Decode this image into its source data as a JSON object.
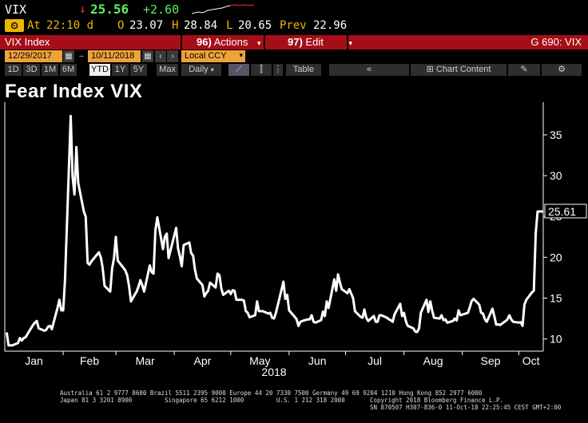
{
  "quote": {
    "ticker": "VIX",
    "arrow": "↓",
    "last": "25.56",
    "change": "+2.60",
    "badge": "🕕",
    "at_label": "At",
    "at_time": "22:10 d",
    "open_label": "O",
    "open": "23.07",
    "high_label": "H",
    "high": "28.84",
    "low_label": "L",
    "low": "20.65",
    "prev_label": "Prev",
    "prev": "22.96"
  },
  "titlebar": {
    "title": "VIX Index",
    "actions_num": "96)",
    "actions_label": "Actions",
    "edit_num": "97)",
    "edit_label": "Edit",
    "right": "G 690: VIX"
  },
  "controls": {
    "start_date": "12/29/2017",
    "end_date": "10/11/2018",
    "currency": "Local CCY"
  },
  "toolbar": {
    "periods": [
      "1D",
      "3D",
      "1M",
      "6M",
      "YTD",
      "1Y",
      "5Y",
      "Max"
    ],
    "active_period": "YTD",
    "frequency": "Daily",
    "table_label": "Table",
    "chart_content_label": "Chart Content"
  },
  "chart_title": "Fear Index VIX",
  "chart_data": {
    "type": "line",
    "title": "Fear Index VIX",
    "xlabel": "2018",
    "ylabel": "",
    "ylim": [
      8.5,
      39
    ],
    "yticks": [
      10,
      15,
      20,
      25,
      30,
      35
    ],
    "x_tick_labels": [
      "Jan",
      "Feb",
      "Mar",
      "Apr",
      "May",
      "Jun",
      "Jul",
      "Aug",
      "Sep",
      "Oct"
    ],
    "last_value_label": "25.61",
    "grid": false,
    "line_color": "#ffffff",
    "series": [
      {
        "values": [
          {
            "x": "2018-01-02",
            "y": 10.8
          },
          {
            "x": "2018-01-03",
            "y": 9.2
          },
          {
            "x": "2018-01-04",
            "y": 9.2
          },
          {
            "x": "2018-01-05",
            "y": 9.2
          },
          {
            "x": "2018-01-08",
            "y": 9.5
          },
          {
            "x": "2018-01-09",
            "y": 10.1
          },
          {
            "x": "2018-01-10",
            "y": 9.8
          },
          {
            "x": "2018-01-11",
            "y": 10.1
          },
          {
            "x": "2018-01-12",
            "y": 10.2
          },
          {
            "x": "2018-01-16",
            "y": 11.7
          },
          {
            "x": "2018-01-17",
            "y": 12.0
          },
          {
            "x": "2018-01-18",
            "y": 12.2
          },
          {
            "x": "2018-01-19",
            "y": 11.3
          },
          {
            "x": "2018-01-22",
            "y": 11.0
          },
          {
            "x": "2018-01-23",
            "y": 11.1
          },
          {
            "x": "2018-01-24",
            "y": 11.5
          },
          {
            "x": "2018-01-25",
            "y": 11.6
          },
          {
            "x": "2018-01-26",
            "y": 11.2
          },
          {
            "x": "2018-01-29",
            "y": 13.8
          },
          {
            "x": "2018-01-30",
            "y": 14.8
          },
          {
            "x": "2018-01-31",
            "y": 13.5
          },
          {
            "x": "2018-02-01",
            "y": 13.5
          },
          {
            "x": "2018-02-02",
            "y": 17.3
          },
          {
            "x": "2018-02-05",
            "y": 37.3
          },
          {
            "x": "2018-02-06",
            "y": 29.9
          },
          {
            "x": "2018-02-07",
            "y": 27.7
          },
          {
            "x": "2018-02-08",
            "y": 33.5
          },
          {
            "x": "2018-02-09",
            "y": 29.1
          },
          {
            "x": "2018-02-12",
            "y": 25.6
          },
          {
            "x": "2018-02-13",
            "y": 24.97
          },
          {
            "x": "2018-02-14",
            "y": 19.3
          },
          {
            "x": "2018-02-15",
            "y": 19.1
          },
          {
            "x": "2018-02-16",
            "y": 19.5
          },
          {
            "x": "2018-02-20",
            "y": 20.6
          },
          {
            "x": "2018-02-21",
            "y": 20.0
          },
          {
            "x": "2018-02-22",
            "y": 18.7
          },
          {
            "x": "2018-02-23",
            "y": 16.5
          },
          {
            "x": "2018-02-26",
            "y": 15.8
          },
          {
            "x": "2018-02-27",
            "y": 18.6
          },
          {
            "x": "2018-02-28",
            "y": 19.9
          },
          {
            "x": "2018-03-01",
            "y": 22.5
          },
          {
            "x": "2018-03-02",
            "y": 19.6
          },
          {
            "x": "2018-03-05",
            "y": 18.7
          },
          {
            "x": "2018-03-06",
            "y": 18.4
          },
          {
            "x": "2018-03-07",
            "y": 17.8
          },
          {
            "x": "2018-03-08",
            "y": 16.5
          },
          {
            "x": "2018-03-09",
            "y": 14.6
          },
          {
            "x": "2018-03-12",
            "y": 15.8
          },
          {
            "x": "2018-03-13",
            "y": 16.4
          },
          {
            "x": "2018-03-14",
            "y": 17.2
          },
          {
            "x": "2018-03-15",
            "y": 16.6
          },
          {
            "x": "2018-03-16",
            "y": 15.8
          },
          {
            "x": "2018-03-19",
            "y": 19.0
          },
          {
            "x": "2018-03-20",
            "y": 18.2
          },
          {
            "x": "2018-03-21",
            "y": 18.0
          },
          {
            "x": "2018-03-22",
            "y": 23.3
          },
          {
            "x": "2018-03-23",
            "y": 24.9
          },
          {
            "x": "2018-03-26",
            "y": 21.0
          },
          {
            "x": "2018-03-27",
            "y": 22.5
          },
          {
            "x": "2018-03-28",
            "y": 22.9
          },
          {
            "x": "2018-03-29",
            "y": 19.9
          },
          {
            "x": "2018-04-02",
            "y": 23.6
          },
          {
            "x": "2018-04-03",
            "y": 21.1
          },
          {
            "x": "2018-04-04",
            "y": 20.1
          },
          {
            "x": "2018-04-05",
            "y": 18.9
          },
          {
            "x": "2018-04-06",
            "y": 21.5
          },
          {
            "x": "2018-04-09",
            "y": 21.8
          },
          {
            "x": "2018-04-10",
            "y": 20.5
          },
          {
            "x": "2018-04-11",
            "y": 20.2
          },
          {
            "x": "2018-04-12",
            "y": 18.5
          },
          {
            "x": "2018-04-13",
            "y": 17.4
          },
          {
            "x": "2018-04-16",
            "y": 16.6
          },
          {
            "x": "2018-04-17",
            "y": 15.2
          },
          {
            "x": "2018-04-18",
            "y": 15.6
          },
          {
            "x": "2018-04-19",
            "y": 15.9
          },
          {
            "x": "2018-04-20",
            "y": 16.9
          },
          {
            "x": "2018-04-23",
            "y": 16.3
          },
          {
            "x": "2018-04-24",
            "y": 18.0
          },
          {
            "x": "2018-04-25",
            "y": 17.8
          },
          {
            "x": "2018-04-26",
            "y": 16.2
          },
          {
            "x": "2018-04-27",
            "y": 15.4
          },
          {
            "x": "2018-04-30",
            "y": 15.9
          },
          {
            "x": "2018-05-01",
            "y": 15.5
          },
          {
            "x": "2018-05-02",
            "y": 15.97
          },
          {
            "x": "2018-05-03",
            "y": 15.9
          },
          {
            "x": "2018-05-04",
            "y": 14.8
          },
          {
            "x": "2018-05-07",
            "y": 14.8
          },
          {
            "x": "2018-05-08",
            "y": 14.7
          },
          {
            "x": "2018-05-09",
            "y": 13.4
          },
          {
            "x": "2018-05-10",
            "y": 13.2
          },
          {
            "x": "2018-05-11",
            "y": 12.65
          },
          {
            "x": "2018-05-14",
            "y": 12.9
          },
          {
            "x": "2018-05-15",
            "y": 14.6
          },
          {
            "x": "2018-05-16",
            "y": 13.4
          },
          {
            "x": "2018-05-17",
            "y": 13.4
          },
          {
            "x": "2018-05-18",
            "y": 13.4
          },
          {
            "x": "2018-05-21",
            "y": 13.1
          },
          {
            "x": "2018-05-22",
            "y": 13.2
          },
          {
            "x": "2018-05-23",
            "y": 12.6
          },
          {
            "x": "2018-05-24",
            "y": 12.5
          },
          {
            "x": "2018-05-25",
            "y": 13.2
          },
          {
            "x": "2018-05-29",
            "y": 17.0
          },
          {
            "x": "2018-05-30",
            "y": 14.9
          },
          {
            "x": "2018-05-31",
            "y": 15.4
          },
          {
            "x": "2018-06-01",
            "y": 13.5
          },
          {
            "x": "2018-06-04",
            "y": 12.7
          },
          {
            "x": "2018-06-05",
            "y": 12.4
          },
          {
            "x": "2018-06-06",
            "y": 11.6
          },
          {
            "x": "2018-06-07",
            "y": 12.1
          },
          {
            "x": "2018-06-08",
            "y": 12.2
          },
          {
            "x": "2018-06-11",
            "y": 12.4
          },
          {
            "x": "2018-06-12",
            "y": 12.4
          },
          {
            "x": "2018-06-13",
            "y": 12.9
          },
          {
            "x": "2018-06-14",
            "y": 12.1
          },
          {
            "x": "2018-06-15",
            "y": 12.0
          },
          {
            "x": "2018-06-18",
            "y": 12.3
          },
          {
            "x": "2018-06-19",
            "y": 13.35
          },
          {
            "x": "2018-06-20",
            "y": 12.8
          },
          {
            "x": "2018-06-21",
            "y": 14.6
          },
          {
            "x": "2018-06-22",
            "y": 13.8
          },
          {
            "x": "2018-06-25",
            "y": 17.3
          },
          {
            "x": "2018-06-26",
            "y": 15.9
          },
          {
            "x": "2018-06-27",
            "y": 17.9
          },
          {
            "x": "2018-06-28",
            "y": 16.9
          },
          {
            "x": "2018-06-29",
            "y": 16.1
          },
          {
            "x": "2018-07-02",
            "y": 15.6
          },
          {
            "x": "2018-07-03",
            "y": 16.1
          },
          {
            "x": "2018-07-05",
            "y": 14.97
          },
          {
            "x": "2018-07-06",
            "y": 13.4
          },
          {
            "x": "2018-07-09",
            "y": 12.7
          },
          {
            "x": "2018-07-10",
            "y": 12.6
          },
          {
            "x": "2018-07-11",
            "y": 13.6
          },
          {
            "x": "2018-07-12",
            "y": 12.6
          },
          {
            "x": "2018-07-13",
            "y": 12.2
          },
          {
            "x": "2018-07-16",
            "y": 12.8
          },
          {
            "x": "2018-07-17",
            "y": 12.1
          },
          {
            "x": "2018-07-18",
            "y": 12.1
          },
          {
            "x": "2018-07-19",
            "y": 12.9
          },
          {
            "x": "2018-07-20",
            "y": 12.9
          },
          {
            "x": "2018-07-23",
            "y": 12.6
          },
          {
            "x": "2018-07-24",
            "y": 12.4
          },
          {
            "x": "2018-07-25",
            "y": 12.3
          },
          {
            "x": "2018-07-26",
            "y": 12.1
          },
          {
            "x": "2018-07-27",
            "y": 13.0
          },
          {
            "x": "2018-07-30",
            "y": 14.3
          },
          {
            "x": "2018-07-31",
            "y": 12.8
          },
          {
            "x": "2018-08-01",
            "y": 13.2
          },
          {
            "x": "2018-08-02",
            "y": 12.2
          },
          {
            "x": "2018-08-03",
            "y": 11.6
          },
          {
            "x": "2018-08-06",
            "y": 11.3
          },
          {
            "x": "2018-08-07",
            "y": 10.9
          },
          {
            "x": "2018-08-08",
            "y": 10.85
          },
          {
            "x": "2018-08-09",
            "y": 11.3
          },
          {
            "x": "2018-08-10",
            "y": 13.2
          },
          {
            "x": "2018-08-13",
            "y": 14.8
          },
          {
            "x": "2018-08-14",
            "y": 13.3
          },
          {
            "x": "2018-08-15",
            "y": 14.6
          },
          {
            "x": "2018-08-16",
            "y": 13.45
          },
          {
            "x": "2018-08-17",
            "y": 12.6
          },
          {
            "x": "2018-08-20",
            "y": 12.5
          },
          {
            "x": "2018-08-21",
            "y": 12.9
          },
          {
            "x": "2018-08-22",
            "y": 12.3
          },
          {
            "x": "2018-08-23",
            "y": 12.4
          },
          {
            "x": "2018-08-24",
            "y": 11.99
          },
          {
            "x": "2018-08-27",
            "y": 12.2
          },
          {
            "x": "2018-08-28",
            "y": 12.5
          },
          {
            "x": "2018-08-29",
            "y": 12.25
          },
          {
            "x": "2018-08-30",
            "y": 13.5
          },
          {
            "x": "2018-08-31",
            "y": 12.9
          },
          {
            "x": "2018-09-04",
            "y": 13.2
          },
          {
            "x": "2018-09-05",
            "y": 13.9
          },
          {
            "x": "2018-09-06",
            "y": 14.65
          },
          {
            "x": "2018-09-07",
            "y": 14.9
          },
          {
            "x": "2018-09-10",
            "y": 14.2
          },
          {
            "x": "2018-09-11",
            "y": 13.2
          },
          {
            "x": "2018-09-12",
            "y": 13.1
          },
          {
            "x": "2018-09-13",
            "y": 12.4
          },
          {
            "x": "2018-09-14",
            "y": 12.1
          },
          {
            "x": "2018-09-17",
            "y": 13.7
          },
          {
            "x": "2018-09-18",
            "y": 12.8
          },
          {
            "x": "2018-09-19",
            "y": 11.75
          },
          {
            "x": "2018-09-20",
            "y": 11.8
          },
          {
            "x": "2018-09-21",
            "y": 11.7
          },
          {
            "x": "2018-09-24",
            "y": 12.2
          },
          {
            "x": "2018-09-25",
            "y": 12.4
          },
          {
            "x": "2018-09-26",
            "y": 12.9
          },
          {
            "x": "2018-09-27",
            "y": 12.4
          },
          {
            "x": "2018-09-28",
            "y": 12.1
          },
          {
            "x": "2018-10-01",
            "y": 12.0
          },
          {
            "x": "2018-10-02",
            "y": 12.05
          },
          {
            "x": "2018-10-03",
            "y": 11.6
          },
          {
            "x": "2018-10-04",
            "y": 14.2
          },
          {
            "x": "2018-10-05",
            "y": 14.8
          },
          {
            "x": "2018-10-08",
            "y": 15.7
          },
          {
            "x": "2018-10-09",
            "y": 15.9
          },
          {
            "x": "2018-10-10",
            "y": 22.96
          },
          {
            "x": "2018-10-11",
            "y": 25.61
          }
        ]
      }
    ]
  },
  "footer": {
    "line1": "Australia 61 2 9777 8600 Brazil 5511 2395 9000 Europe 44 20 7330 7500 Germany 49 69 9204 1210 Hong Kong 852 2977 6000",
    "line2_left": "Japan 81 3 3201 8900         Singapore 65 6212 1000         U.S. 1 212 318 2000",
    "line2_right": "Copyright 2018 Bloomberg Finance L.P.",
    "line3_right": "SN 870507 H307-836-0 11-Oct-18 22:25:45 CEST GMT+2:00"
  }
}
